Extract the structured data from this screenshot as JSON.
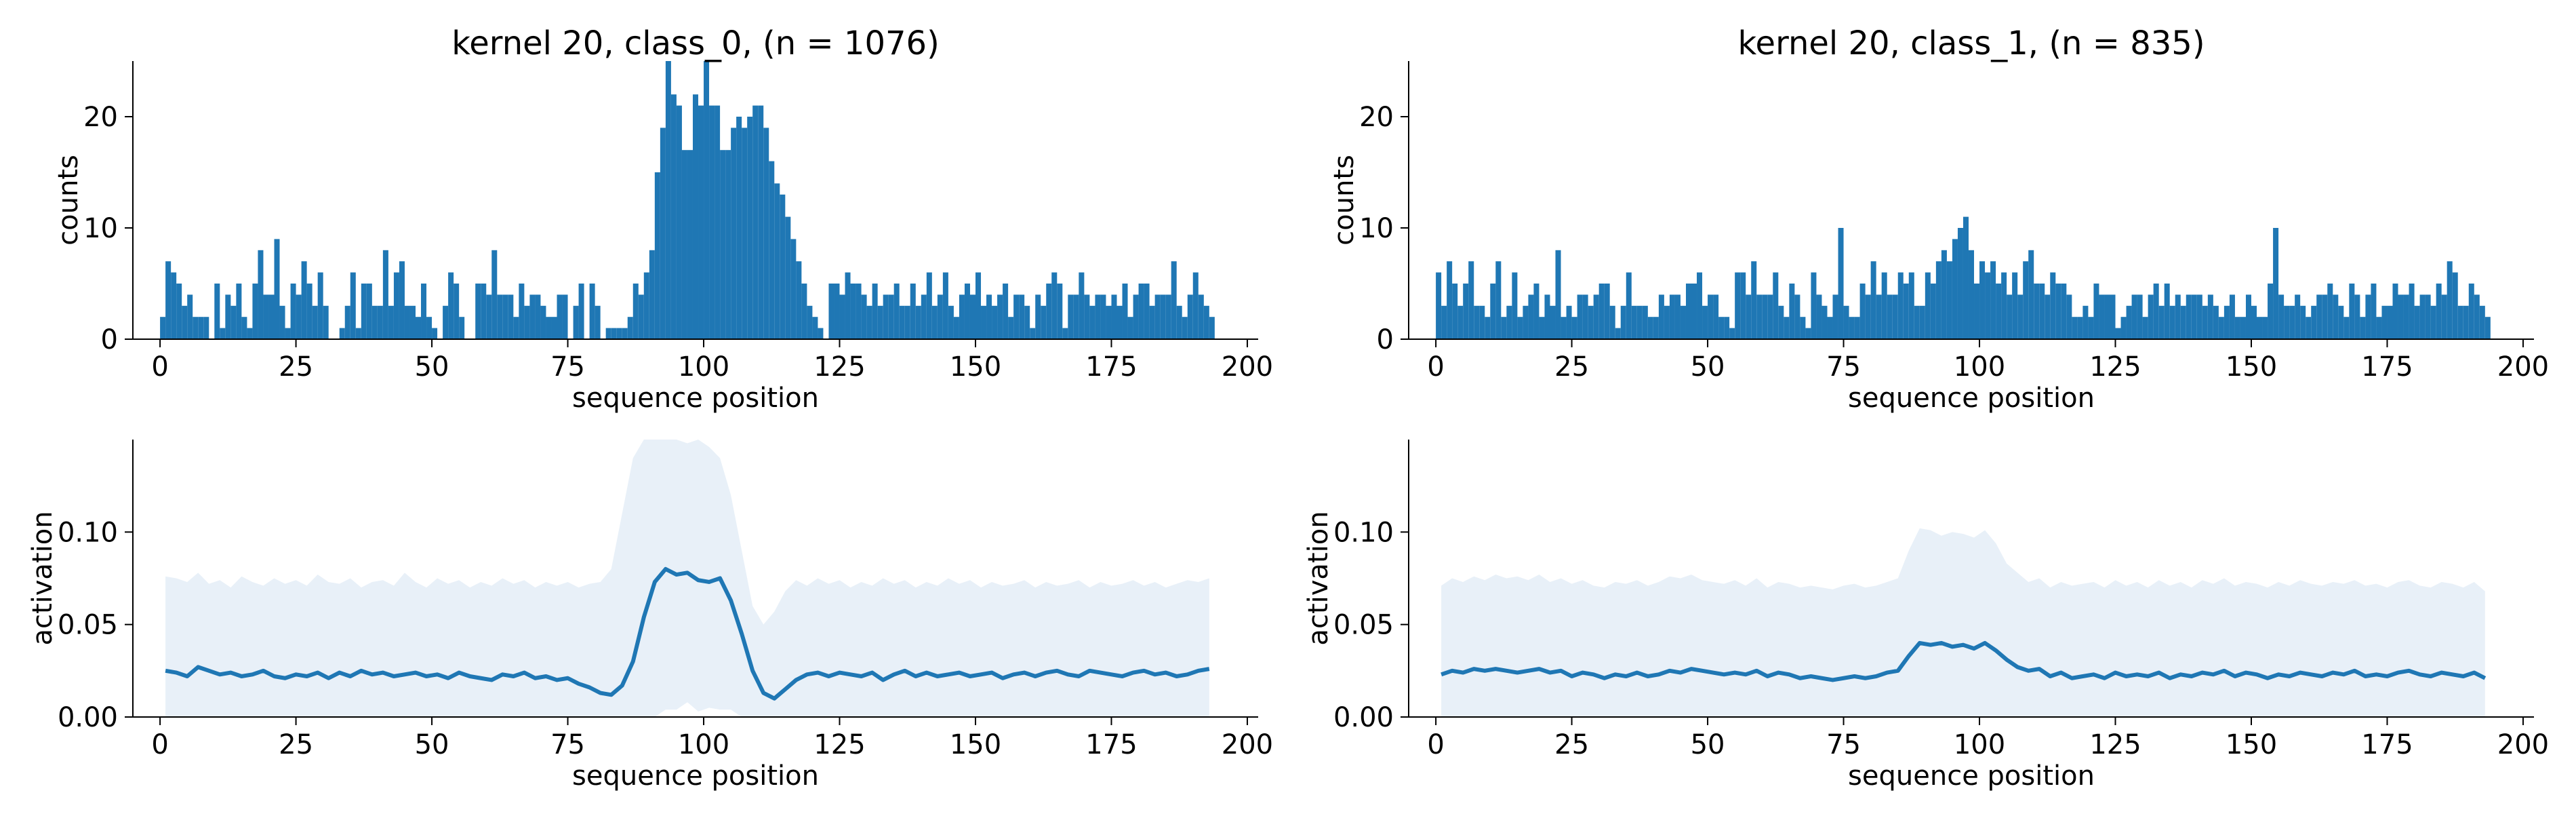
{
  "figure": {
    "colors": {
      "bar": "#1f77b4",
      "line": "#1f77b4",
      "band": "#e8f0f8",
      "axis": "#000000"
    }
  },
  "chart_data": [
    {
      "id": "hist_class0",
      "type": "bar",
      "title": "kernel 20, class_0, (n = 1076)",
      "xlabel": "sequence position",
      "ylabel": "counts",
      "xlim": [
        -5,
        202
      ],
      "ylim": [
        0,
        25
      ],
      "xticks": [
        0,
        25,
        50,
        75,
        100,
        125,
        150,
        175,
        200
      ],
      "yticks": [
        0,
        10,
        20
      ],
      "x_start": 0,
      "values": [
        2,
        7,
        6,
        5,
        3,
        4,
        2,
        2,
        2,
        0,
        5,
        1,
        4,
        3,
        5,
        2,
        1,
        5,
        8,
        4,
        4,
        9,
        3,
        1,
        5,
        4,
        7,
        5,
        3,
        6,
        3,
        0,
        0,
        1,
        3,
        6,
        1,
        5,
        5,
        3,
        3,
        8,
        3,
        6,
        7,
        3,
        3,
        2,
        5,
        2,
        1,
        0,
        3,
        6,
        5,
        2,
        0,
        0,
        5,
        5,
        4,
        8,
        4,
        4,
        4,
        2,
        5,
        3,
        4,
        4,
        3,
        2,
        2,
        4,
        4,
        0,
        3,
        5,
        0,
        5,
        3,
        0,
        1,
        1,
        1,
        1,
        2,
        5,
        4,
        6,
        8,
        15,
        19,
        25,
        22,
        21,
        17,
        17,
        22,
        21,
        25,
        21,
        21,
        17,
        17,
        19,
        20,
        19,
        20,
        21,
        21,
        19,
        16,
        14,
        13,
        11,
        9,
        7,
        5,
        3,
        2,
        1,
        0,
        5,
        5,
        4,
        6,
        5,
        5,
        4,
        3,
        5,
        3,
        4,
        4,
        5,
        3,
        3,
        5,
        3,
        4,
        6,
        3,
        4,
        6,
        3,
        2,
        4,
        5,
        4,
        6,
        3,
        4,
        3,
        4,
        5,
        2,
        4,
        4,
        3,
        1,
        4,
        3,
        5,
        6,
        5,
        1,
        4,
        4,
        6,
        4,
        3,
        4,
        4,
        3,
        4,
        3,
        5,
        2,
        4,
        5,
        5,
        3,
        4,
        4,
        4,
        7,
        3,
        2,
        4,
        6,
        4,
        3,
        2
      ]
    },
    {
      "id": "hist_class1",
      "type": "bar",
      "title": "kernel 20, class_1, (n = 835)",
      "xlabel": "sequence position",
      "ylabel": "counts",
      "xlim": [
        -5,
        202
      ],
      "ylim": [
        0,
        25
      ],
      "xticks": [
        0,
        25,
        50,
        75,
        100,
        125,
        150,
        175,
        200
      ],
      "yticks": [
        0,
        10,
        20
      ],
      "x_start": 0,
      "values": [
        6,
        3,
        7,
        5,
        3,
        5,
        7,
        3,
        3,
        2,
        5,
        7,
        2,
        3,
        6,
        2,
        3,
        4,
        5,
        2,
        4,
        3,
        8,
        2,
        3,
        2,
        4,
        4,
        3,
        4,
        5,
        5,
        3,
        1,
        3,
        6,
        3,
        3,
        3,
        2,
        2,
        4,
        3,
        4,
        4,
        3,
        5,
        5,
        6,
        3,
        4,
        4,
        2,
        2,
        1,
        6,
        6,
        4,
        7,
        4,
        4,
        4,
        6,
        3,
        2,
        5,
        4,
        2,
        1,
        6,
        4,
        3,
        2,
        4,
        10,
        3,
        2,
        2,
        5,
        4,
        7,
        4,
        6,
        4,
        4,
        6,
        5,
        6,
        3,
        3,
        6,
        5,
        7,
        8,
        7,
        9,
        10,
        11,
        8,
        5,
        7,
        6,
        7,
        5,
        6,
        4,
        6,
        4,
        7,
        8,
        5,
        5,
        4,
        6,
        5,
        5,
        4,
        2,
        2,
        3,
        2,
        5,
        4,
        4,
        4,
        1,
        2,
        3,
        4,
        4,
        2,
        4,
        5,
        3,
        5,
        3,
        4,
        3,
        4,
        4,
        4,
        3,
        4,
        3,
        2,
        3,
        4,
        2,
        2,
        4,
        3,
        2,
        2,
        5,
        10,
        4,
        3,
        3,
        4,
        3,
        2,
        3,
        4,
        4,
        5,
        4,
        3,
        2,
        5,
        4,
        2,
        4,
        5,
        2,
        3,
        3,
        5,
        4,
        4,
        5,
        3,
        4,
        4,
        3,
        5,
        4,
        7,
        6,
        3,
        3,
        5,
        4,
        3,
        2
      ]
    },
    {
      "id": "act_class0",
      "type": "line",
      "title": "",
      "xlabel": "sequence position",
      "ylabel": "activation",
      "xlim": [
        -5,
        202
      ],
      "ylim": [
        0,
        0.15
      ],
      "xticks": [
        0,
        25,
        50,
        75,
        100,
        125,
        150,
        175,
        200
      ],
      "yticks": [
        0.0,
        0.05,
        0.1
      ],
      "ytick_labels": [
        "0.00",
        "0.05",
        "0.10"
      ],
      "x": [
        1,
        3,
        5,
        7,
        9,
        11,
        13,
        15,
        17,
        19,
        21,
        23,
        25,
        27,
        29,
        31,
        33,
        35,
        37,
        39,
        41,
        43,
        45,
        47,
        49,
        51,
        53,
        55,
        57,
        59,
        61,
        63,
        65,
        67,
        69,
        71,
        73,
        75,
        77,
        79,
        81,
        83,
        85,
        87,
        89,
        91,
        93,
        95,
        97,
        99,
        101,
        103,
        105,
        107,
        109,
        111,
        113,
        115,
        117,
        119,
        121,
        123,
        125,
        127,
        129,
        131,
        133,
        135,
        137,
        139,
        141,
        143,
        145,
        147,
        149,
        151,
        153,
        155,
        157,
        159,
        161,
        163,
        165,
        167,
        169,
        171,
        173,
        175,
        177,
        179,
        181,
        183,
        185,
        187,
        189,
        191,
        193
      ],
      "y": [
        0.025,
        0.024,
        0.022,
        0.027,
        0.025,
        0.023,
        0.024,
        0.022,
        0.023,
        0.025,
        0.022,
        0.021,
        0.023,
        0.022,
        0.024,
        0.021,
        0.024,
        0.022,
        0.025,
        0.023,
        0.024,
        0.022,
        0.023,
        0.024,
        0.022,
        0.023,
        0.021,
        0.024,
        0.022,
        0.021,
        0.02,
        0.023,
        0.022,
        0.024,
        0.021,
        0.022,
        0.02,
        0.021,
        0.018,
        0.016,
        0.013,
        0.012,
        0.017,
        0.03,
        0.054,
        0.073,
        0.08,
        0.077,
        0.078,
        0.074,
        0.073,
        0.075,
        0.063,
        0.045,
        0.025,
        0.013,
        0.01,
        0.015,
        0.02,
        0.023,
        0.024,
        0.022,
        0.024,
        0.023,
        0.022,
        0.024,
        0.02,
        0.023,
        0.025,
        0.022,
        0.024,
        0.022,
        0.023,
        0.024,
        0.022,
        0.023,
        0.024,
        0.021,
        0.023,
        0.024,
        0.022,
        0.024,
        0.025,
        0.023,
        0.022,
        0.025,
        0.024,
        0.023,
        0.022,
        0.024,
        0.025,
        0.023,
        0.024,
        0.022,
        0.023,
        0.025,
        0.026
      ],
      "y_upper": [
        0.076,
        0.075,
        0.073,
        0.078,
        0.072,
        0.074,
        0.07,
        0.076,
        0.073,
        0.071,
        0.075,
        0.072,
        0.074,
        0.071,
        0.077,
        0.073,
        0.072,
        0.075,
        0.07,
        0.073,
        0.074,
        0.071,
        0.078,
        0.073,
        0.07,
        0.075,
        0.072,
        0.074,
        0.07,
        0.073,
        0.071,
        0.075,
        0.072,
        0.074,
        0.07,
        0.073,
        0.071,
        0.073,
        0.07,
        0.072,
        0.073,
        0.08,
        0.11,
        0.14,
        0.15,
        0.15,
        0.15,
        0.15,
        0.148,
        0.15,
        0.146,
        0.14,
        0.12,
        0.09,
        0.06,
        0.05,
        0.057,
        0.068,
        0.074,
        0.071,
        0.075,
        0.072,
        0.074,
        0.07,
        0.073,
        0.071,
        0.075,
        0.072,
        0.074,
        0.07,
        0.073,
        0.071,
        0.075,
        0.072,
        0.074,
        0.07,
        0.073,
        0.071,
        0.072,
        0.074,
        0.07,
        0.073,
        0.071,
        0.072,
        0.074,
        0.07,
        0.073,
        0.071,
        0.072,
        0.074,
        0.071,
        0.073,
        0.07,
        0.072,
        0.074,
        0.073,
        0.075
      ],
      "y_lower": [
        0,
        0,
        0,
        0,
        0,
        0,
        0,
        0,
        0,
        0,
        0,
        0,
        0,
        0,
        0,
        0,
        0,
        0,
        0,
        0,
        0,
        0,
        0,
        0,
        0,
        0,
        0,
        0,
        0,
        0,
        0,
        0,
        0,
        0,
        0,
        0,
        0,
        0,
        0,
        0,
        0,
        0,
        0,
        0,
        0,
        0,
        0.004,
        0.004,
        0.008,
        0.003,
        0.005,
        0.004,
        0.004,
        0,
        0,
        0,
        0,
        0,
        0,
        0,
        0,
        0,
        0,
        0,
        0,
        0,
        0,
        0,
        0,
        0,
        0,
        0,
        0,
        0,
        0,
        0,
        0,
        0,
        0,
        0,
        0,
        0,
        0,
        0,
        0,
        0,
        0,
        0,
        0,
        0,
        0,
        0,
        0,
        0,
        0,
        0,
        0
      ]
    },
    {
      "id": "act_class1",
      "type": "line",
      "title": "",
      "xlabel": "sequence position",
      "ylabel": "activation",
      "xlim": [
        -5,
        202
      ],
      "ylim": [
        0,
        0.15
      ],
      "xticks": [
        0,
        25,
        50,
        75,
        100,
        125,
        150,
        175,
        200
      ],
      "yticks": [
        0.0,
        0.05,
        0.1
      ],
      "ytick_labels": [
        "0.00",
        "0.05",
        "0.10"
      ],
      "x": [
        1,
        3,
        5,
        7,
        9,
        11,
        13,
        15,
        17,
        19,
        21,
        23,
        25,
        27,
        29,
        31,
        33,
        35,
        37,
        39,
        41,
        43,
        45,
        47,
        49,
        51,
        53,
        55,
        57,
        59,
        61,
        63,
        65,
        67,
        69,
        71,
        73,
        75,
        77,
        79,
        81,
        83,
        85,
        87,
        89,
        91,
        93,
        95,
        97,
        99,
        101,
        103,
        105,
        107,
        109,
        111,
        113,
        115,
        117,
        119,
        121,
        123,
        125,
        127,
        129,
        131,
        133,
        135,
        137,
        139,
        141,
        143,
        145,
        147,
        149,
        151,
        153,
        155,
        157,
        159,
        161,
        163,
        165,
        167,
        169,
        171,
        173,
        175,
        177,
        179,
        181,
        183,
        185,
        187,
        189,
        191,
        193
      ],
      "y": [
        0.023,
        0.025,
        0.024,
        0.026,
        0.025,
        0.026,
        0.025,
        0.024,
        0.025,
        0.026,
        0.024,
        0.025,
        0.022,
        0.024,
        0.023,
        0.021,
        0.023,
        0.022,
        0.024,
        0.022,
        0.023,
        0.025,
        0.024,
        0.026,
        0.025,
        0.024,
        0.023,
        0.024,
        0.023,
        0.025,
        0.022,
        0.024,
        0.023,
        0.021,
        0.022,
        0.021,
        0.02,
        0.021,
        0.022,
        0.021,
        0.022,
        0.024,
        0.025,
        0.033,
        0.04,
        0.039,
        0.04,
        0.038,
        0.039,
        0.037,
        0.04,
        0.036,
        0.031,
        0.027,
        0.025,
        0.026,
        0.022,
        0.024,
        0.021,
        0.022,
        0.023,
        0.021,
        0.024,
        0.022,
        0.023,
        0.022,
        0.024,
        0.021,
        0.023,
        0.022,
        0.024,
        0.023,
        0.025,
        0.022,
        0.024,
        0.023,
        0.021,
        0.023,
        0.022,
        0.024,
        0.023,
        0.022,
        0.024,
        0.023,
        0.025,
        0.022,
        0.023,
        0.022,
        0.024,
        0.025,
        0.023,
        0.022,
        0.024,
        0.023,
        0.022,
        0.024,
        0.021
      ],
      "y_upper": [
        0.071,
        0.075,
        0.073,
        0.076,
        0.074,
        0.077,
        0.075,
        0.076,
        0.074,
        0.077,
        0.073,
        0.075,
        0.072,
        0.074,
        0.071,
        0.07,
        0.073,
        0.072,
        0.074,
        0.071,
        0.073,
        0.076,
        0.075,
        0.077,
        0.074,
        0.073,
        0.072,
        0.074,
        0.071,
        0.075,
        0.07,
        0.073,
        0.072,
        0.07,
        0.071,
        0.07,
        0.069,
        0.071,
        0.072,
        0.07,
        0.071,
        0.073,
        0.075,
        0.09,
        0.102,
        0.101,
        0.098,
        0.1,
        0.099,
        0.097,
        0.101,
        0.094,
        0.083,
        0.078,
        0.073,
        0.075,
        0.07,
        0.073,
        0.071,
        0.072,
        0.073,
        0.07,
        0.074,
        0.071,
        0.073,
        0.07,
        0.074,
        0.071,
        0.073,
        0.07,
        0.074,
        0.072,
        0.075,
        0.071,
        0.073,
        0.072,
        0.07,
        0.073,
        0.071,
        0.074,
        0.072,
        0.071,
        0.073,
        0.072,
        0.074,
        0.071,
        0.072,
        0.07,
        0.073,
        0.074,
        0.071,
        0.07,
        0.073,
        0.072,
        0.07,
        0.073,
        0.068
      ],
      "y_lower": [
        0,
        0,
        0,
        0,
        0,
        0,
        0,
        0,
        0,
        0,
        0,
        0,
        0,
        0,
        0,
        0,
        0,
        0,
        0,
        0,
        0,
        0,
        0,
        0,
        0,
        0,
        0,
        0,
        0,
        0,
        0,
        0,
        0,
        0,
        0,
        0,
        0,
        0,
        0,
        0,
        0,
        0,
        0,
        0,
        0,
        0,
        0,
        0,
        0,
        0,
        0,
        0,
        0,
        0,
        0,
        0,
        0,
        0,
        0,
        0,
        0,
        0,
        0,
        0,
        0,
        0,
        0,
        0,
        0,
        0,
        0,
        0,
        0,
        0,
        0,
        0,
        0,
        0,
        0,
        0,
        0,
        0,
        0,
        0,
        0,
        0,
        0,
        0,
        0,
        0,
        0,
        0,
        0,
        0,
        0,
        0,
        0
      ]
    }
  ]
}
